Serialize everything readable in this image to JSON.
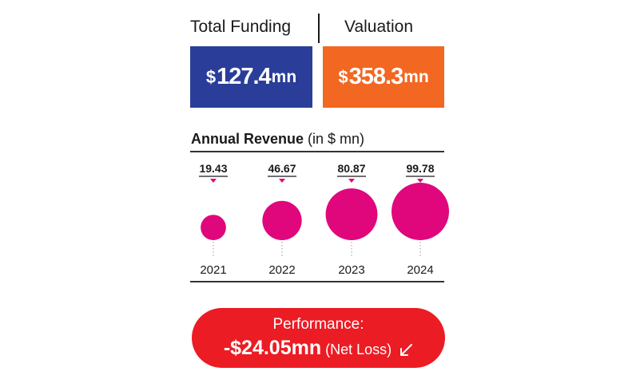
{
  "header": {
    "total_funding_label": "Total Funding",
    "valuation_label": "Valuation"
  },
  "total_funding": {
    "currency": "$",
    "amount": "127.4",
    "unit": "mn"
  },
  "valuation": {
    "currency": "$",
    "amount": "358.3",
    "unit": "mn"
  },
  "revenue_title": {
    "bold": "Annual Revenue",
    "suffix": " (in $ mn)"
  },
  "performance": {
    "label": "Performance:",
    "value": "-$24.05mn",
    "note": " (Net Loss)",
    "arrow_icon": "arrow-down-left-icon"
  },
  "colors": {
    "funding_box": "#2a3e99",
    "valuation_box": "#f26722",
    "bubble": "#e0077d",
    "performance_pill": "#ec1c24"
  },
  "chart_data": {
    "type": "bubble",
    "title": "Annual Revenue (in $ mn)",
    "categories": [
      "2021",
      "2022",
      "2023",
      "2024"
    ],
    "values": [
      19.43,
      46.67,
      80.87,
      99.78
    ],
    "value_labels": [
      "19.43",
      "46.67",
      "80.87",
      "99.78"
    ]
  }
}
